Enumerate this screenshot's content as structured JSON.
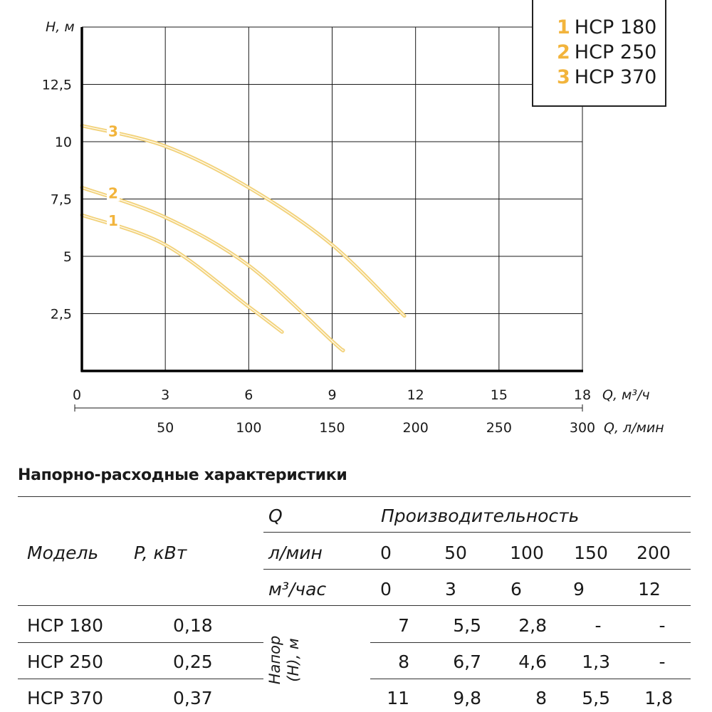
{
  "chart_data": {
    "type": "line",
    "ylabel": "H, м",
    "xlabel_primary": "Q, м³/ч",
    "xlabel_secondary": "Q, л/мин",
    "ylim": [
      0,
      15
    ],
    "xlim": [
      0,
      18
    ],
    "y_ticks": [
      "2,5",
      "5",
      "7,5",
      "10",
      "12,5"
    ],
    "y_tick_values": [
      2.5,
      5,
      7.5,
      10,
      12.5
    ],
    "x_ticks": [
      "0",
      "3",
      "6",
      "9",
      "12",
      "15",
      "18"
    ],
    "x_tick_values": [
      0,
      3,
      6,
      9,
      12,
      15,
      18
    ],
    "x2_ticks": [
      "50",
      "100",
      "150",
      "200",
      "250",
      "300"
    ],
    "x2_tick_values": [
      3,
      6,
      9,
      12,
      15,
      18
    ],
    "grid": true,
    "legend_position": "top-right",
    "series_color": "#f2d27a",
    "label_color": "#f2b43c",
    "series": [
      {
        "name": "HCP 180",
        "label": "1",
        "x": [
          0,
          3,
          6,
          7.2
        ],
        "y": [
          6.8,
          5.5,
          2.8,
          1.7
        ]
      },
      {
        "name": "HCP 250",
        "label": "2",
        "x": [
          0,
          3,
          6,
          9,
          9.4
        ],
        "y": [
          8,
          6.7,
          4.6,
          1.3,
          0.9
        ]
      },
      {
        "name": "HCP 370",
        "label": "3",
        "x": [
          0,
          3,
          6,
          9,
          11.6
        ],
        "y": [
          10.7,
          9.8,
          8,
          5.5,
          2.4
        ]
      }
    ]
  },
  "legend": [
    {
      "num": "1",
      "name": "HCP 180"
    },
    {
      "num": "2",
      "name": "HCP 250"
    },
    {
      "num": "3",
      "name": "HCP 370"
    }
  ],
  "table": {
    "title": "Напорно-расходные характеристики",
    "header_model": "Модель",
    "header_power": "P, кВт",
    "header_q": "Q",
    "header_perf": "Производительность",
    "row_lmin_label": "л/мин",
    "row_m3_label": "м³/час",
    "lmin": [
      "0",
      "50",
      "100",
      "150",
      "200"
    ],
    "m3h": [
      "0",
      "3",
      "6",
      "9",
      "12"
    ],
    "head_label": "Напор (H), м",
    "rows": [
      {
        "model": "HCP 180",
        "power": "0,18",
        "values": [
          "7",
          "5,5",
          "2,8",
          "-",
          "-"
        ]
      },
      {
        "model": "HCP 250",
        "power": "0,25",
        "values": [
          "8",
          "6,7",
          "4,6",
          "1,3",
          "-"
        ]
      },
      {
        "model": "HCP 370",
        "power": "0,37",
        "values": [
          "11",
          "9,8",
          "8",
          "5,5",
          "1,8"
        ]
      }
    ]
  }
}
